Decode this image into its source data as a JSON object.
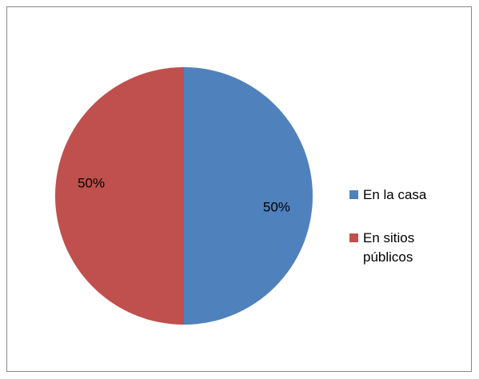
{
  "chart_data": {
    "type": "pie",
    "categories": [
      "En la casa",
      "En sitios públicos"
    ],
    "values": [
      50,
      50
    ],
    "value_labels": [
      "50%",
      "50%"
    ],
    "colors": [
      "#4f81bd",
      "#c0504d"
    ],
    "legend": "right"
  }
}
